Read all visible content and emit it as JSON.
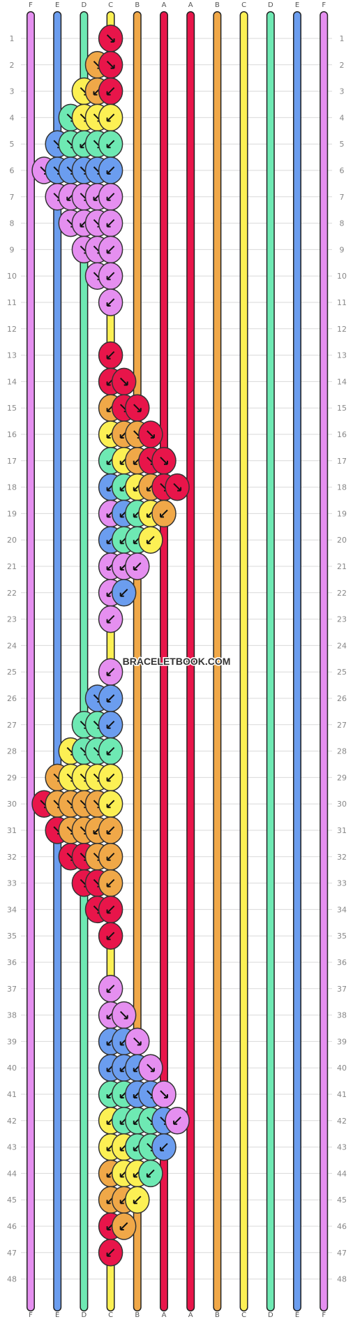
{
  "watermark": "BRACELETBOOK.COM",
  "strings": [
    {
      "letter": "F",
      "color": "#e58ff0"
    },
    {
      "letter": "E",
      "color": "#6b9def"
    },
    {
      "letter": "D",
      "color": "#6ee9b3"
    },
    {
      "letter": "C",
      "color": "#fcf054"
    },
    {
      "letter": "B",
      "color": "#f0a848"
    },
    {
      "letter": "A",
      "color": "#e8154a"
    },
    {
      "letter": "A",
      "color": "#e8154a"
    },
    {
      "letter": "B",
      "color": "#f0a848"
    },
    {
      "letter": "C",
      "color": "#fcf054"
    },
    {
      "letter": "D",
      "color": "#6ee9b3"
    },
    {
      "letter": "E",
      "color": "#6b9def"
    },
    {
      "letter": "F",
      "color": "#e58ff0"
    }
  ],
  "row_numbers_left": [
    "1",
    "2",
    "3",
    "4",
    "5",
    "6",
    "7",
    "8",
    "9",
    "10",
    "11",
    "12",
    "13",
    "14",
    "15",
    "16",
    "17",
    "18",
    "19",
    "20",
    "21",
    "22",
    "23",
    "24",
    "25",
    "26",
    "27",
    "28",
    "29",
    "30",
    "31",
    "32",
    "33",
    "34",
    "35",
    "36",
    "37",
    "38",
    "39",
    "40",
    "41",
    "42",
    "43",
    "44",
    "45",
    "46",
    "47",
    "48"
  ],
  "row_numbers_right": [
    "1",
    "2",
    "3",
    "4",
    "5",
    "6",
    "7",
    "8",
    "9",
    "10",
    "11",
    "12",
    "13",
    "14",
    "15",
    "16",
    "17",
    "18",
    "19",
    "20",
    "21",
    "22",
    "23",
    "24",
    "25",
    "26",
    "27",
    "28",
    "29",
    "30",
    "31",
    "32",
    "33",
    "34",
    "35",
    "36",
    "37",
    "38",
    "39",
    "40",
    "41",
    "42",
    "43",
    "44",
    "45",
    "46",
    "47",
    "48"
  ],
  "knot_colors": [
    "#e8154a",
    "#f0a848",
    "#fcf054",
    "#6ee9b3",
    "#6b9def",
    "#e58ff0"
  ],
  "knot_rows": [
    [
      [
        6,
        0,
        "se"
      ]
    ],
    [
      [
        5,
        1,
        "se"
      ],
      [
        6,
        0,
        "se"
      ]
    ],
    [
      [
        4,
        2,
        "se"
      ],
      [
        5,
        1,
        "sw"
      ],
      [
        6,
        0,
        "sw"
      ]
    ],
    [
      [
        3,
        3,
        "se"
      ],
      [
        4,
        2,
        "se"
      ],
      [
        5,
        2,
        "se"
      ],
      [
        6,
        2,
        "sw"
      ]
    ],
    [
      [
        2,
        4,
        "se"
      ],
      [
        3,
        3,
        "se"
      ],
      [
        4,
        3,
        "sw"
      ],
      [
        5,
        3,
        "se"
      ],
      [
        6,
        3,
        "sw"
      ]
    ],
    [
      [
        1,
        5,
        "se"
      ],
      [
        2,
        4,
        "se"
      ],
      [
        3,
        4,
        "se"
      ],
      [
        4,
        4,
        "se"
      ],
      [
        5,
        4,
        "se"
      ],
      [
        6,
        4,
        "sw"
      ]
    ],
    [
      [
        2,
        5,
        "se"
      ],
      [
        3,
        5,
        "sw"
      ],
      [
        4,
        5,
        "se"
      ],
      [
        5,
        5,
        "sw"
      ],
      [
        6,
        5,
        "sw"
      ]
    ],
    [
      [
        3,
        5,
        "se"
      ],
      [
        4,
        5,
        "sw"
      ],
      [
        5,
        5,
        "se"
      ],
      [
        6,
        5,
        "sw"
      ]
    ],
    [
      [
        4,
        5,
        "se"
      ],
      [
        5,
        5,
        "se"
      ],
      [
        6,
        5,
        "sw"
      ]
    ],
    [
      [
        5,
        5,
        "se"
      ],
      [
        6,
        5,
        "sw"
      ]
    ],
    [
      [
        6,
        5,
        "sw"
      ]
    ],
    [],
    [
      [
        6,
        0,
        "sw"
      ]
    ],
    [
      [
        6,
        0,
        "sw"
      ],
      [
        7,
        0,
        "se"
      ]
    ],
    [
      [
        6,
        1,
        "sw"
      ],
      [
        7,
        0,
        "se"
      ],
      [
        8,
        0,
        "se"
      ]
    ],
    [
      [
        6,
        2,
        "sw"
      ],
      [
        7,
        1,
        "sw"
      ],
      [
        8,
        1,
        "se"
      ],
      [
        9,
        0,
        "se"
      ]
    ],
    [
      [
        6,
        3,
        "sw"
      ],
      [
        7,
        2,
        "sw"
      ],
      [
        8,
        1,
        "sw"
      ],
      [
        9,
        0,
        "se"
      ],
      [
        10,
        0,
        "se"
      ]
    ],
    [
      [
        6,
        4,
        "sw"
      ],
      [
        7,
        3,
        "sw"
      ],
      [
        8,
        2,
        "sw"
      ],
      [
        9,
        1,
        "sw"
      ],
      [
        10,
        0,
        "se"
      ],
      [
        11,
        0,
        "se"
      ]
    ],
    [
      [
        6,
        5,
        "sw"
      ],
      [
        7,
        4,
        "sw"
      ],
      [
        8,
        3,
        "sw"
      ],
      [
        9,
        2,
        "sw"
      ],
      [
        10,
        1,
        "sw"
      ]
    ],
    [
      [
        6,
        4,
        "sw"
      ],
      [
        7,
        3,
        "sw"
      ],
      [
        8,
        3,
        "sw"
      ],
      [
        9,
        2,
        "sw"
      ]
    ],
    [
      [
        6,
        5,
        "sw"
      ],
      [
        7,
        5,
        "sw"
      ],
      [
        8,
        5,
        "sw"
      ]
    ],
    [
      [
        6,
        5,
        "sw"
      ],
      [
        7,
        4,
        "sw"
      ]
    ],
    [
      [
        6,
        5,
        "sw"
      ]
    ],
    [],
    [
      [
        6,
        5,
        "sw"
      ]
    ],
    [
      [
        5,
        4,
        "se"
      ],
      [
        6,
        4,
        "sw"
      ]
    ],
    [
      [
        4,
        3,
        "se"
      ],
      [
        5,
        3,
        "se"
      ],
      [
        6,
        4,
        "sw"
      ]
    ],
    [
      [
        3,
        2,
        "se"
      ],
      [
        4,
        3,
        "se"
      ],
      [
        5,
        3,
        "se"
      ],
      [
        6,
        3,
        "sw"
      ]
    ],
    [
      [
        2,
        1,
        "se"
      ],
      [
        3,
        2,
        "se"
      ],
      [
        4,
        2,
        "se"
      ],
      [
        5,
        2,
        "se"
      ],
      [
        6,
        2,
        "sw"
      ]
    ],
    [
      [
        1,
        0,
        "se"
      ],
      [
        2,
        1,
        "se"
      ],
      [
        3,
        1,
        "se"
      ],
      [
        4,
        1,
        "se"
      ],
      [
        5,
        1,
        "se"
      ],
      [
        6,
        2,
        "sw"
      ]
    ],
    [
      [
        2,
        0,
        "se"
      ],
      [
        3,
        1,
        "se"
      ],
      [
        4,
        1,
        "se"
      ],
      [
        5,
        1,
        "sw"
      ],
      [
        6,
        1,
        "sw"
      ]
    ],
    [
      [
        3,
        0,
        "se"
      ],
      [
        4,
        0,
        "se"
      ],
      [
        5,
        1,
        "se"
      ],
      [
        6,
        1,
        "sw"
      ]
    ],
    [
      [
        4,
        0,
        "se"
      ],
      [
        5,
        0,
        "se"
      ],
      [
        6,
        1,
        "sw"
      ]
    ],
    [
      [
        5,
        0,
        "se"
      ],
      [
        6,
        0,
        "sw"
      ]
    ],
    [
      [
        6,
        0,
        "sw"
      ]
    ],
    [],
    [
      [
        6,
        5,
        "sw"
      ]
    ],
    [
      [
        6,
        5,
        "sw"
      ],
      [
        7,
        5,
        "se"
      ]
    ],
    [
      [
        6,
        4,
        "sw"
      ],
      [
        7,
        4,
        "sw"
      ],
      [
        8,
        5,
        "se"
      ]
    ],
    [
      [
        6,
        4,
        "sw"
      ],
      [
        7,
        4,
        "sw"
      ],
      [
        8,
        4,
        "sw"
      ],
      [
        9,
        5,
        "se"
      ]
    ],
    [
      [
        6,
        3,
        "sw"
      ],
      [
        7,
        3,
        "sw"
      ],
      [
        8,
        4,
        "sw"
      ],
      [
        9,
        4,
        "se"
      ],
      [
        10,
        5,
        "se"
      ]
    ],
    [
      [
        6,
        2,
        "sw"
      ],
      [
        7,
        3,
        "sw"
      ],
      [
        8,
        3,
        "sw"
      ],
      [
        9,
        3,
        "se"
      ],
      [
        10,
        4,
        "se"
      ],
      [
        11,
        5,
        "sw"
      ]
    ],
    [
      [
        6,
        2,
        "sw"
      ],
      [
        7,
        2,
        "sw"
      ],
      [
        8,
        3,
        "sw"
      ],
      [
        9,
        3,
        "se"
      ],
      [
        10,
        4,
        "sw"
      ]
    ],
    [
      [
        6,
        1,
        "sw"
      ],
      [
        7,
        2,
        "sw"
      ],
      [
        8,
        2,
        "sw"
      ],
      [
        9,
        3,
        "sw"
      ]
    ],
    [
      [
        6,
        1,
        "sw"
      ],
      [
        7,
        1,
        "sw"
      ],
      [
        8,
        2,
        "sw"
      ]
    ],
    [
      [
        6,
        0,
        "sw"
      ],
      [
        7,
        1,
        "sw"
      ]
    ],
    [
      [
        6,
        0,
        "sw"
      ]
    ],
    []
  ]
}
